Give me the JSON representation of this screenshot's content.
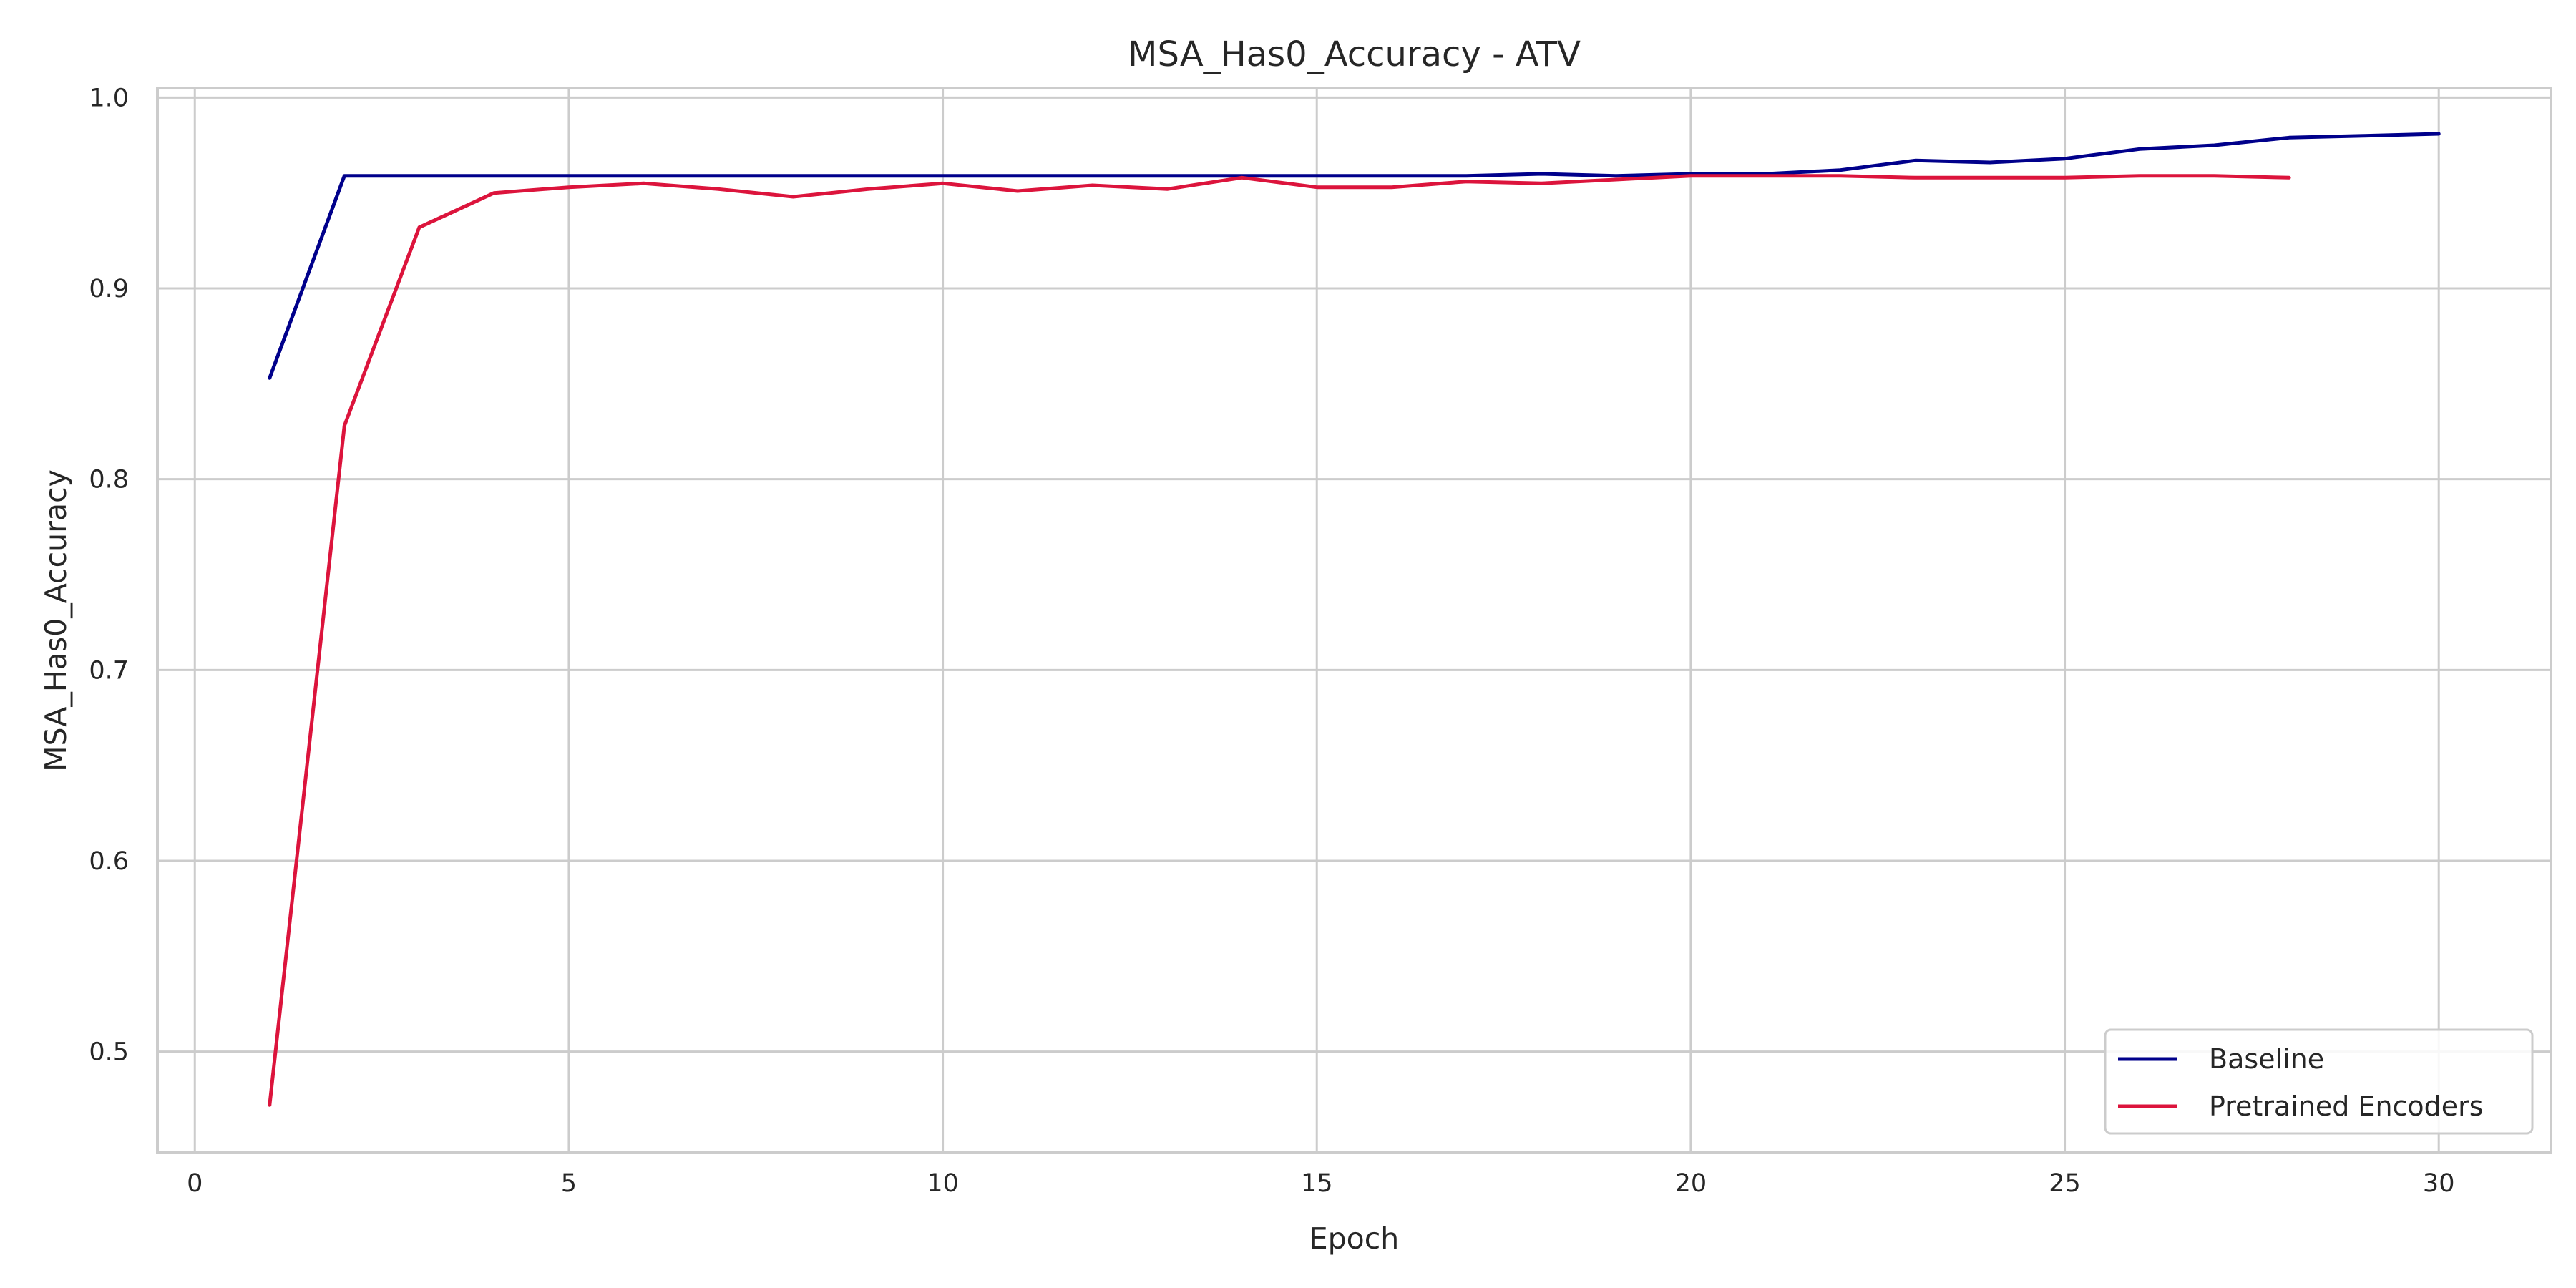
{
  "chart_data": {
    "type": "line",
    "title": "MSA_Has0_Accuracy - ATV",
    "xlabel": "Epoch",
    "ylabel": "MSA_Has0_Accuracy",
    "xlim": [
      -0.5,
      31.5
    ],
    "ylim": [
      0.447,
      1.005
    ],
    "xticks": [
      0,
      5,
      10,
      15,
      20,
      25,
      30
    ],
    "yticks": [
      0.5,
      0.6,
      0.7,
      0.8,
      0.9,
      1.0
    ],
    "xtick_labels": [
      "0",
      "5",
      "10",
      "15",
      "20",
      "25",
      "30"
    ],
    "ytick_labels": [
      "0.5",
      "0.6",
      "0.7",
      "0.8",
      "0.9",
      "1.0"
    ],
    "grid": true,
    "legend_position": "lower right",
    "series": [
      {
        "name": "Baseline",
        "color": "#00008b",
        "x": [
          1,
          2,
          3,
          4,
          5,
          6,
          7,
          8,
          9,
          10,
          11,
          12,
          13,
          14,
          15,
          16,
          17,
          18,
          19,
          20,
          21,
          22,
          23,
          24,
          25,
          26,
          27,
          28,
          29,
          30
        ],
        "y": [
          0.853,
          0.959,
          0.959,
          0.959,
          0.959,
          0.959,
          0.959,
          0.959,
          0.959,
          0.959,
          0.959,
          0.959,
          0.959,
          0.959,
          0.959,
          0.959,
          0.959,
          0.96,
          0.959,
          0.96,
          0.96,
          0.962,
          0.967,
          0.966,
          0.968,
          0.973,
          0.975,
          0.979,
          0.98,
          0.981
        ]
      },
      {
        "name": "Pretrained Encoders",
        "color": "#dc143c",
        "x": [
          1,
          2,
          3,
          4,
          5,
          6,
          7,
          8,
          9,
          10,
          11,
          12,
          13,
          14,
          15,
          16,
          17,
          18,
          19,
          20,
          21,
          22,
          23,
          24,
          25,
          26,
          27,
          28
        ],
        "y": [
          0.472,
          0.828,
          0.932,
          0.95,
          0.953,
          0.955,
          0.952,
          0.948,
          0.952,
          0.955,
          0.951,
          0.954,
          0.952,
          0.958,
          0.953,
          0.953,
          0.956,
          0.955,
          0.957,
          0.959,
          0.959,
          0.959,
          0.958,
          0.958,
          0.958,
          0.959,
          0.959,
          0.958
        ]
      }
    ]
  }
}
